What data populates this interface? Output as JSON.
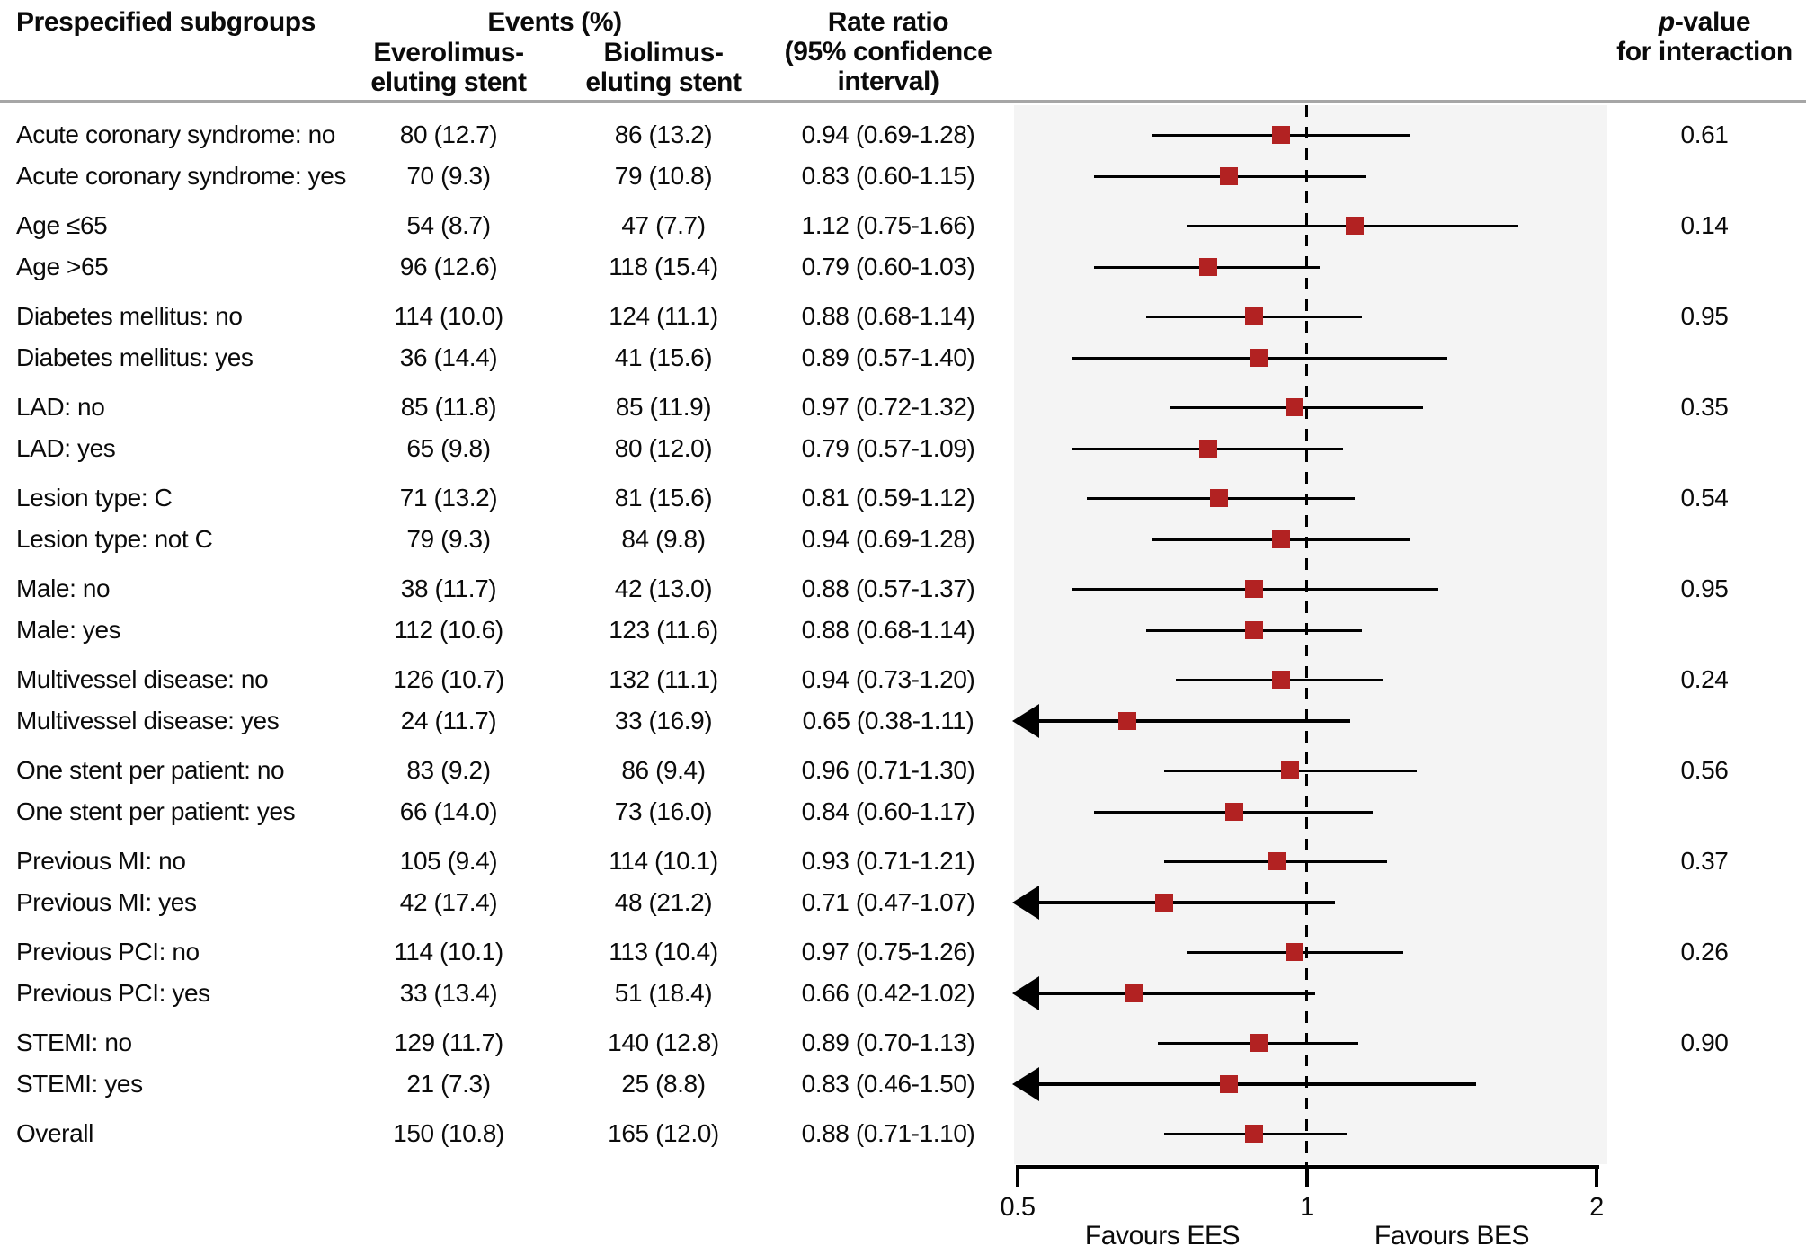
{
  "figure": {
    "header": {
      "subgroups": "Prespecified subgroups",
      "events": "Events (%)",
      "ees_arm_line1": "Everolimus-",
      "ees_arm_line2": "eluting stent",
      "bes_arm_line1": "Biolimus-",
      "bes_arm_line2": "eluting stent",
      "rr_line1": "Rate ratio",
      "rr_line2": "(95% confidence",
      "rr_line3": "interval)",
      "p_italic": "p",
      "p_rest": "-value",
      "p_line2": "for interaction"
    },
    "colors": {
      "marker": "#b22222",
      "plot_bg": "#f4f4f4",
      "rule": "#a6a6a6",
      "line": "#000000"
    }
  },
  "chart_data": {
    "type": "forest",
    "x_axis": {
      "scale": "log",
      "range": [
        0.5,
        2
      ],
      "ticks": [
        0.5,
        1,
        2
      ],
      "tick_labels": [
        "0.5",
        "1",
        "2"
      ],
      "reference_line": 1
    },
    "favours_left": "Favours EES",
    "favours_right": "Favours BES",
    "columns": {
      "subgroup": "Prespecified subgroups",
      "ees": "Everolimus-eluting stent events (%)",
      "bes": "Biolimus-eluting stent events (%)",
      "rr": "Rate ratio (95% confidence interval)",
      "p": "p-value for interaction"
    },
    "rows": [
      {
        "group": 0,
        "label": "Acute coronary syndrome: no",
        "ees": "80 (12.7)",
        "bes": "86 (13.2)",
        "rr_text": "0.94 (0.69-1.28)",
        "rr": 0.94,
        "lo": 0.69,
        "hi": 1.28,
        "p": "0.61"
      },
      {
        "group": 0,
        "label": "Acute coronary syndrome: yes",
        "ees": "70 (9.3)",
        "bes": "79 (10.8)",
        "rr_text": "0.83 (0.60-1.15)",
        "rr": 0.83,
        "lo": 0.6,
        "hi": 1.15
      },
      {
        "group": 1,
        "label": "Age ≤65",
        "ees": "54 (8.7)",
        "bes": "47 (7.7)",
        "rr_text": "1.12 (0.75-1.66)",
        "rr": 1.12,
        "lo": 0.75,
        "hi": 1.66,
        "p": "0.14"
      },
      {
        "group": 1,
        "label": "Age >65",
        "ees": "96 (12.6)",
        "bes": "118 (15.4)",
        "rr_text": "0.79 (0.60-1.03)",
        "rr": 0.79,
        "lo": 0.6,
        "hi": 1.03
      },
      {
        "group": 2,
        "label": "Diabetes mellitus: no",
        "ees": "114 (10.0)",
        "bes": "124 (11.1)",
        "rr_text": "0.88 (0.68-1.14)",
        "rr": 0.88,
        "lo": 0.68,
        "hi": 1.14,
        "p": "0.95"
      },
      {
        "group": 2,
        "label": "Diabetes mellitus: yes",
        "ees": "36 (14.4)",
        "bes": "41 (15.6)",
        "rr_text": "0.89 (0.57-1.40)",
        "rr": 0.89,
        "lo": 0.57,
        "hi": 1.4
      },
      {
        "group": 3,
        "label": "LAD: no",
        "ees": "85 (11.8)",
        "bes": "85 (11.9)",
        "rr_text": "0.97 (0.72-1.32)",
        "rr": 0.97,
        "lo": 0.72,
        "hi": 1.32,
        "p": "0.35"
      },
      {
        "group": 3,
        "label": "LAD: yes",
        "ees": "65 (9.8)",
        "bes": "80 (12.0)",
        "rr_text": "0.79 (0.57-1.09)",
        "rr": 0.79,
        "lo": 0.57,
        "hi": 1.09
      },
      {
        "group": 4,
        "label": "Lesion type: C",
        "ees": "71 (13.2)",
        "bes": "81 (15.6)",
        "rr_text": "0.81 (0.59-1.12)",
        "rr": 0.81,
        "lo": 0.59,
        "hi": 1.12,
        "p": "0.54"
      },
      {
        "group": 4,
        "label": "Lesion type: not C",
        "ees": "79 (9.3)",
        "bes": "84 (9.8)",
        "rr_text": "0.94 (0.69-1.28)",
        "rr": 0.94,
        "lo": 0.69,
        "hi": 1.28
      },
      {
        "group": 5,
        "label": "Male: no",
        "ees": "38 (11.7)",
        "bes": "42 (13.0)",
        "rr_text": "0.88 (0.57-1.37)",
        "rr": 0.88,
        "lo": 0.57,
        "hi": 1.37,
        "p": "0.95"
      },
      {
        "group": 5,
        "label": "Male: yes",
        "ees": "112 (10.6)",
        "bes": "123 (11.6)",
        "rr_text": "0.88 (0.68-1.14)",
        "rr": 0.88,
        "lo": 0.68,
        "hi": 1.14
      },
      {
        "group": 6,
        "label": "Multivessel disease: no",
        "ees": "126 (10.7)",
        "bes": "132 (11.1)",
        "rr_text": "0.94 (0.73-1.20)",
        "rr": 0.94,
        "lo": 0.73,
        "hi": 1.2,
        "p": "0.24"
      },
      {
        "group": 6,
        "label": "Multivessel disease: yes",
        "ees": "24 (11.7)",
        "bes": "33 (16.9)",
        "rr_text": "0.65 (0.38-1.11)",
        "rr": 0.65,
        "lo": 0.38,
        "hi": 1.11
      },
      {
        "group": 7,
        "label": "One stent per patient: no",
        "ees": "83 (9.2)",
        "bes": "86 (9.4)",
        "rr_text": "0.96 (0.71-1.30)",
        "rr": 0.96,
        "lo": 0.71,
        "hi": 1.3,
        "p": "0.56"
      },
      {
        "group": 7,
        "label": "One stent per patient: yes",
        "ees": "66 (14.0)",
        "bes": "73 (16.0)",
        "rr_text": "0.84 (0.60-1.17)",
        "rr": 0.84,
        "lo": 0.6,
        "hi": 1.17
      },
      {
        "group": 8,
        "label": "Previous MI: no",
        "ees": "105 (9.4)",
        "bes": "114 (10.1)",
        "rr_text": "0.93 (0.71-1.21)",
        "rr": 0.93,
        "lo": 0.71,
        "hi": 1.21,
        "p": "0.37"
      },
      {
        "group": 8,
        "label": "Previous MI: yes",
        "ees": "42 (17.4)",
        "bes": "48 (21.2)",
        "rr_text": "0.71 (0.47-1.07)",
        "rr": 0.71,
        "lo": 0.47,
        "hi": 1.07
      },
      {
        "group": 9,
        "label": "Previous PCI: no",
        "ees": "114 (10.1)",
        "bes": "113 (10.4)",
        "rr_text": "0.97 (0.75-1.26)",
        "rr": 0.97,
        "lo": 0.75,
        "hi": 1.26,
        "p": "0.26"
      },
      {
        "group": 9,
        "label": "Previous PCI: yes",
        "ees": "33 (13.4)",
        "bes": "51 (18.4)",
        "rr_text": "0.66 (0.42-1.02)",
        "rr": 0.66,
        "lo": 0.42,
        "hi": 1.02
      },
      {
        "group": 10,
        "label": "STEMI: no",
        "ees": "129 (11.7)",
        "bes": "140 (12.8)",
        "rr_text": "0.89 (0.70-1.13)",
        "rr": 0.89,
        "lo": 0.7,
        "hi": 1.13,
        "p": "0.90"
      },
      {
        "group": 10,
        "label": "STEMI: yes",
        "ees": "21 (7.3)",
        "bes": "25 (8.8)",
        "rr_text": "0.83 (0.46-1.50)",
        "rr": 0.83,
        "lo": 0.46,
        "hi": 1.5
      },
      {
        "group": 11,
        "label": "Overall",
        "ees": "150 (10.8)",
        "bes": "165 (12.0)",
        "rr_text": "0.88 (0.71-1.10)",
        "rr": 0.88,
        "lo": 0.71,
        "hi": 1.1
      }
    ]
  }
}
